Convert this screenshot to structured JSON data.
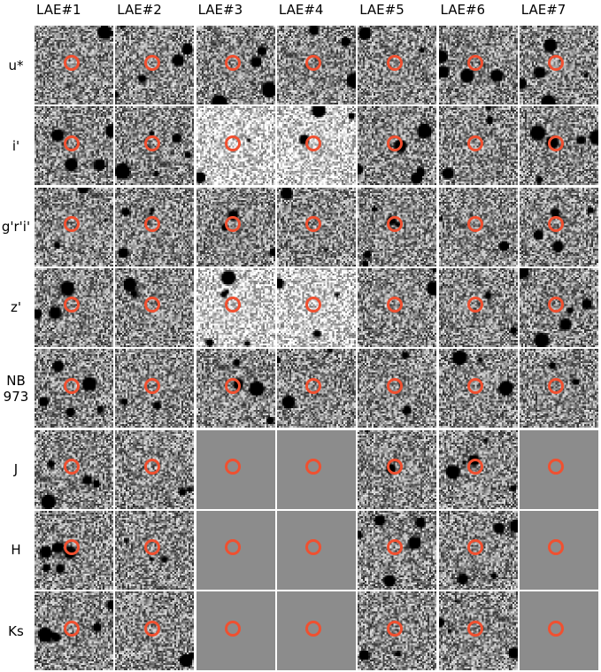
{
  "columns": [
    "LAE#1",
    "LAE#2",
    "LAE#3",
    "LAE#4",
    "LAE#5",
    "LAE#6",
    "LAE#7"
  ],
  "rows": [
    "u*",
    "i'",
    "g'r'i'",
    "z'",
    "NB\n973",
    "J",
    "H",
    "Ks"
  ],
  "missing_cells": [
    {
      "row": "J",
      "col": "LAE#3"
    },
    {
      "row": "J",
      "col": "LAE#4"
    },
    {
      "row": "J",
      "col": "LAE#7"
    },
    {
      "row": "H",
      "col": "LAE#3"
    },
    {
      "row": "H",
      "col": "LAE#4"
    },
    {
      "row": "H",
      "col": "LAE#7"
    },
    {
      "row": "Ks",
      "col": "LAE#3"
    },
    {
      "row": "Ks",
      "col": "LAE#4"
    },
    {
      "row": "Ks",
      "col": "LAE#7"
    }
  ],
  "colors": {
    "marker": "#f05030",
    "blank_cell": "#8c8c8c",
    "background": "#ffffff"
  }
}
